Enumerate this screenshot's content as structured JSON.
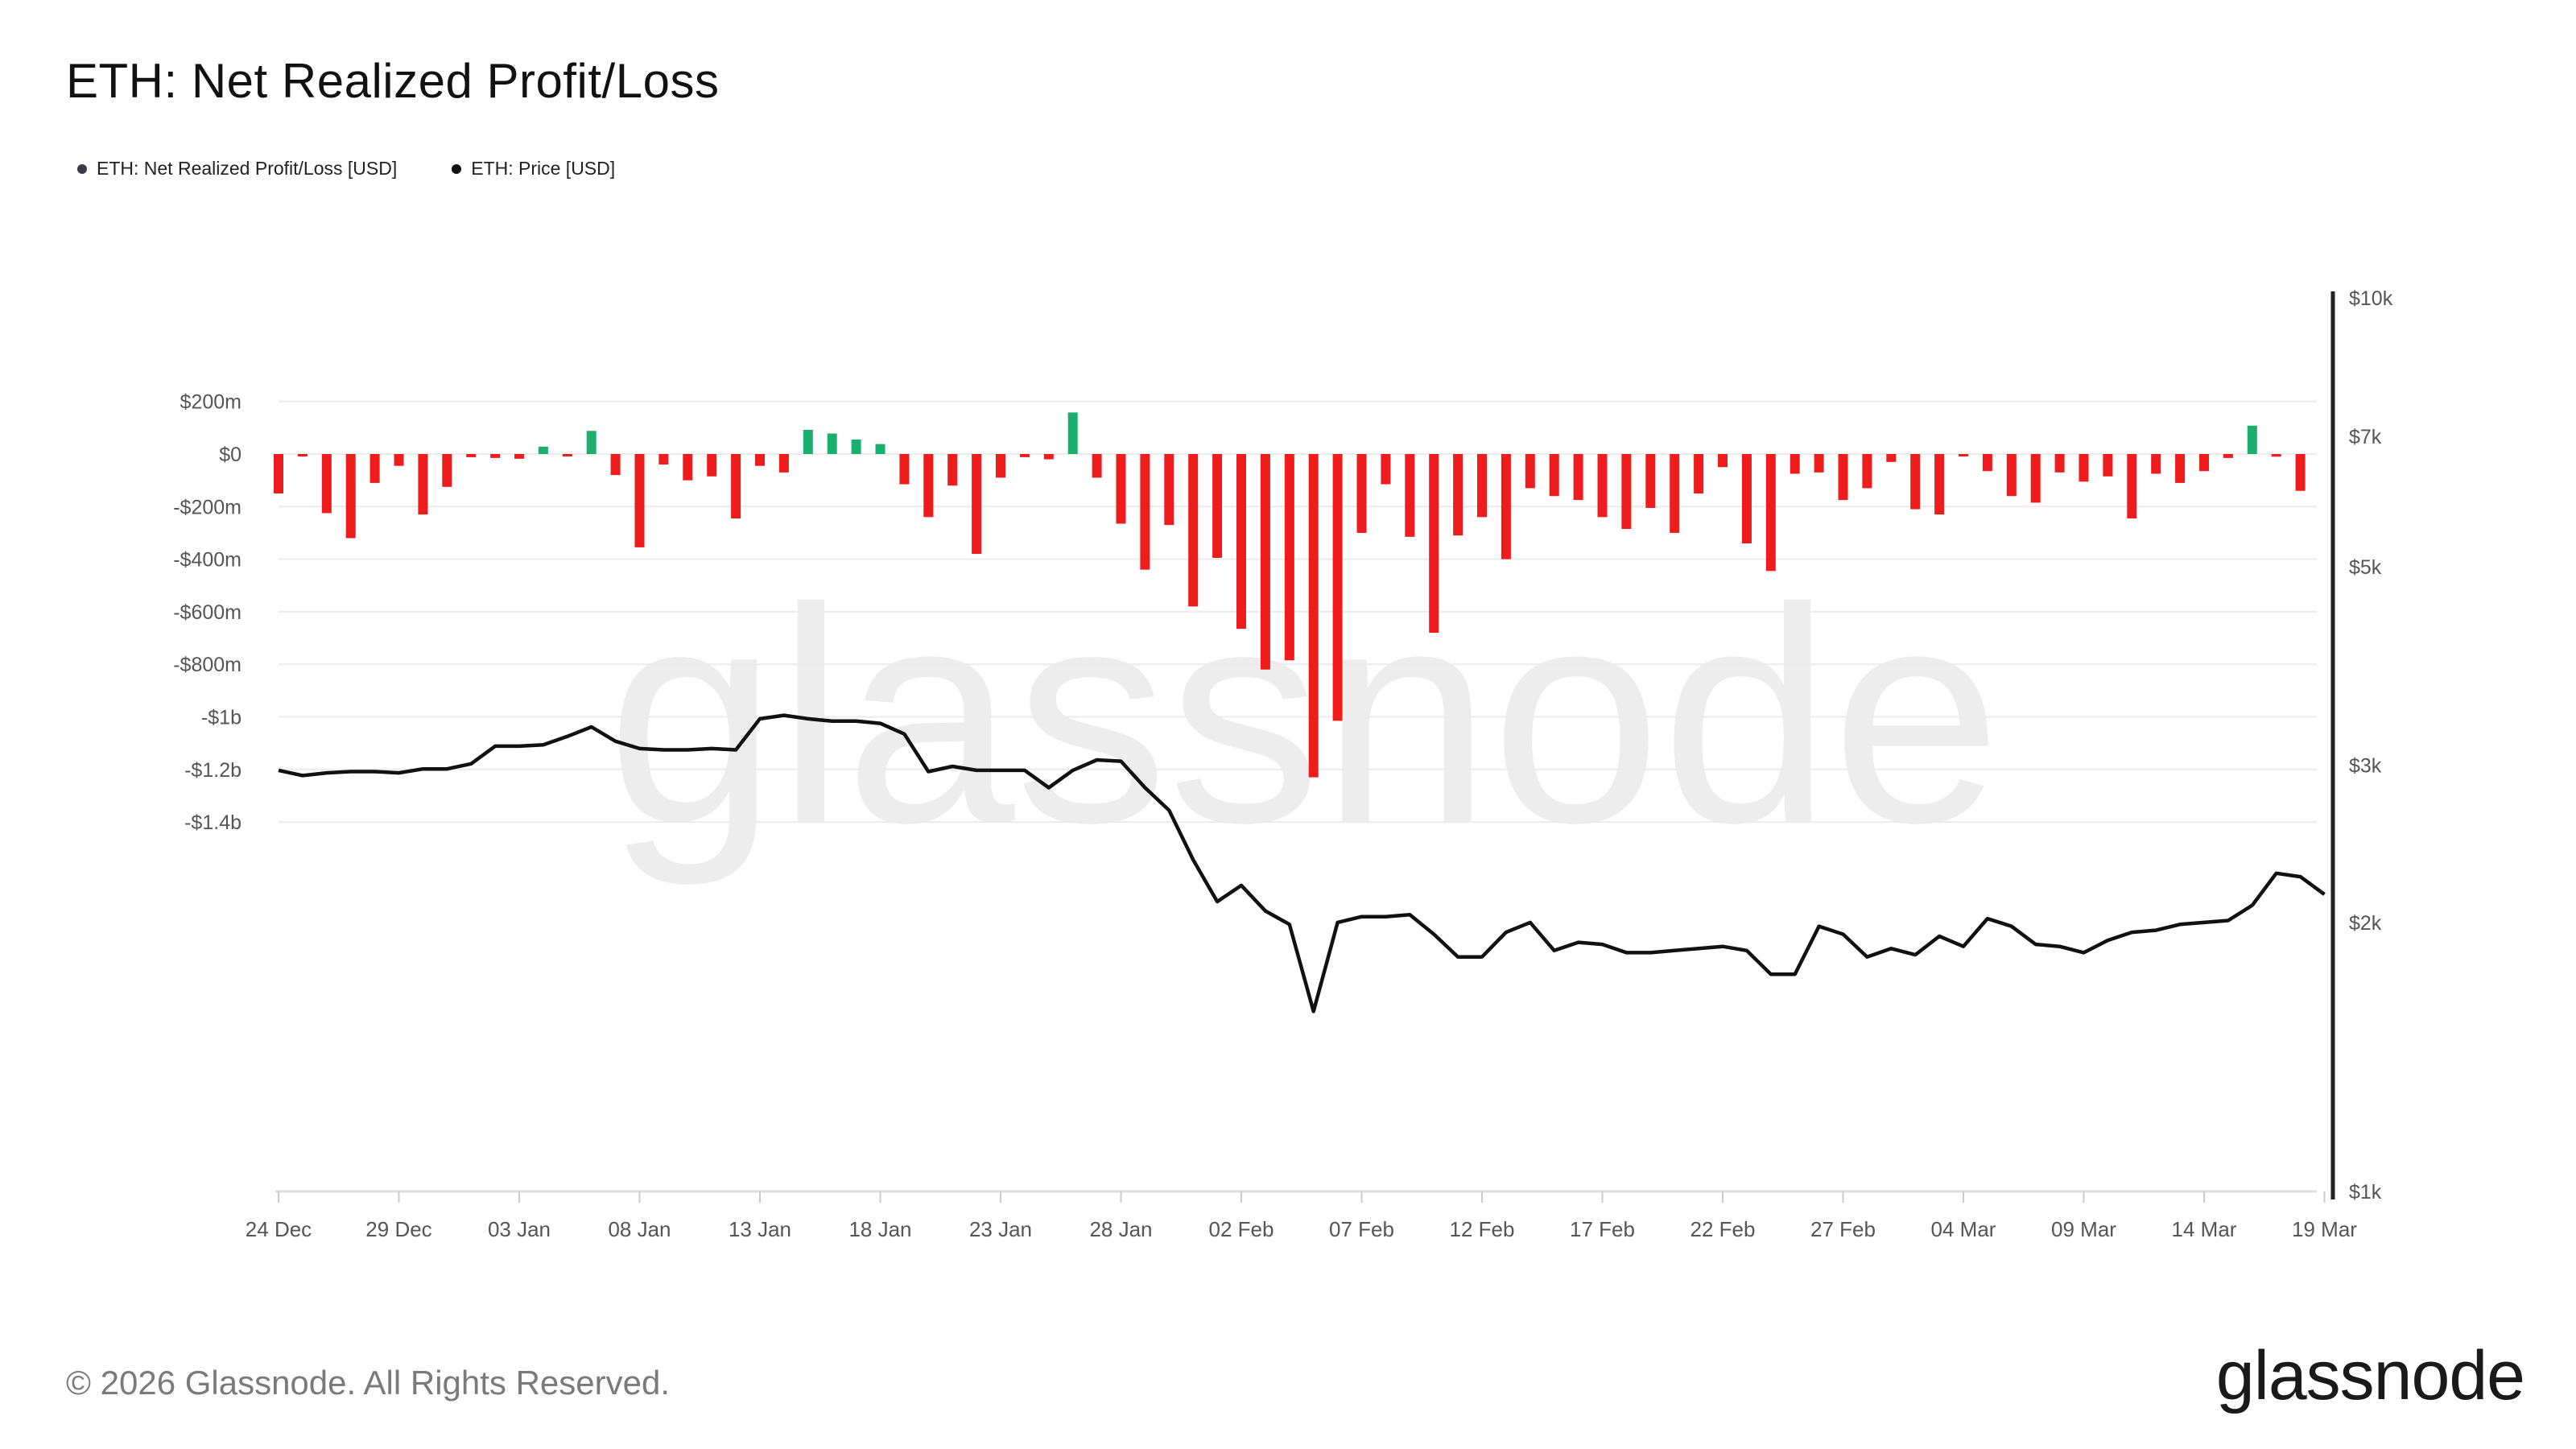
{
  "title": "ETH: Net Realized Profit/Loss",
  "legend": [
    {
      "label": "ETH: Net Realized Profit/Loss [USD]",
      "color": "#3b3b48"
    },
    {
      "label": "ETH: Price [USD]",
      "color": "#111111"
    }
  ],
  "watermark": "glassnode",
  "footer": {
    "copyright": "© 2026 Glassnode. All Rights Reserved.",
    "brand": "glassnode"
  },
  "colors": {
    "profit": "#1aaf6c",
    "loss": "#ee1c1c",
    "price_line": "#111111",
    "grid": "#ececec",
    "axis_text": "#555555"
  },
  "chart_data": {
    "type": "bar",
    "title": "ETH: Net Realized Profit/Loss",
    "xlabel": "",
    "ylabel": "",
    "grid": true,
    "legend_position": "top-left",
    "x_start": "24 Dec",
    "x_ticks": [
      "24 Dec",
      "29 Dec",
      "03 Jan",
      "08 Jan",
      "13 Jan",
      "18 Jan",
      "23 Jan",
      "28 Jan",
      "02 Feb",
      "07 Feb",
      "12 Feb",
      "17 Feb",
      "22 Feb",
      "27 Feb",
      "04 Mar",
      "09 Mar",
      "14 Mar",
      "19 Mar"
    ],
    "y_left": {
      "ticks": [
        200,
        0,
        -200,
        -400,
        -600,
        -800,
        -1000,
        -1200,
        -1400
      ],
      "tick_labels": [
        "$200m",
        "$0",
        "-$200m",
        "-$400m",
        "-$600m",
        "-$800m",
        "-$1b",
        "-$1.2b",
        "-$1.4b"
      ],
      "range": [
        -1400,
        250
      ],
      "unit": "USD millions"
    },
    "y_right": {
      "scale": "log",
      "ticks": [
        1000,
        2000,
        3000,
        5000,
        7000,
        10000
      ],
      "tick_labels": [
        "$1k",
        "$2k",
        "$3k",
        "$5k",
        "$7k",
        "$10k"
      ],
      "range": [
        1000,
        10000
      ]
    },
    "series": [
      {
        "name": "ETH: Net Realized Profit/Loss [USD]",
        "type": "bar",
        "values": [
          -150,
          -8,
          -225,
          -320,
          -110,
          -45,
          -230,
          -125,
          -12,
          -15,
          -18,
          28,
          -8,
          88,
          -80,
          -355,
          -40,
          -100,
          -85,
          -245,
          -45,
          -70,
          92,
          78,
          55,
          38,
          -115,
          -240,
          -120,
          -380,
          -90,
          -12,
          -20,
          158,
          -90,
          -265,
          -440,
          -270,
          -580,
          -395,
          -665,
          -820,
          -785,
          -1230,
          -1015,
          -300,
          -115,
          -315,
          -680,
          -310,
          -240,
          -400,
          -130,
          -160,
          -175,
          -240,
          -285,
          -205,
          -300,
          -150,
          -50,
          -340,
          -445,
          -75,
          -70,
          -175,
          -130,
          -30,
          -210,
          -230,
          -8,
          -65,
          -160,
          -185,
          -70,
          -105,
          -85,
          -245,
          -75,
          -110,
          -65,
          -15,
          108,
          -10,
          -140
        ]
      },
      {
        "name": "ETH: Price [USD]",
        "type": "line",
        "values": [
          2960,
          2920,
          2940,
          2950,
          2950,
          2940,
          2970,
          2970,
          3010,
          3150,
          3150,
          3160,
          3230,
          3310,
          3190,
          3130,
          3120,
          3120,
          3130,
          3120,
          3380,
          3410,
          3380,
          3360,
          3360,
          3340,
          3250,
          2950,
          2990,
          2960,
          2960,
          2960,
          2830,
          2960,
          3040,
          3030,
          2830,
          2670,
          2350,
          2110,
          2200,
          2060,
          1990,
          1590,
          2000,
          2030,
          2030,
          2040,
          1940,
          1830,
          1830,
          1950,
          2000,
          1860,
          1900,
          1890,
          1850,
          1850,
          1860,
          1870,
          1880,
          1860,
          1750,
          1750,
          1980,
          1940,
          1830,
          1870,
          1840,
          1930,
          1880,
          2020,
          1980,
          1890,
          1880,
          1850,
          1910,
          1950,
          1960,
          1990,
          2000,
          2010,
          2090,
          2270,
          2250,
          2150
        ]
      }
    ]
  }
}
